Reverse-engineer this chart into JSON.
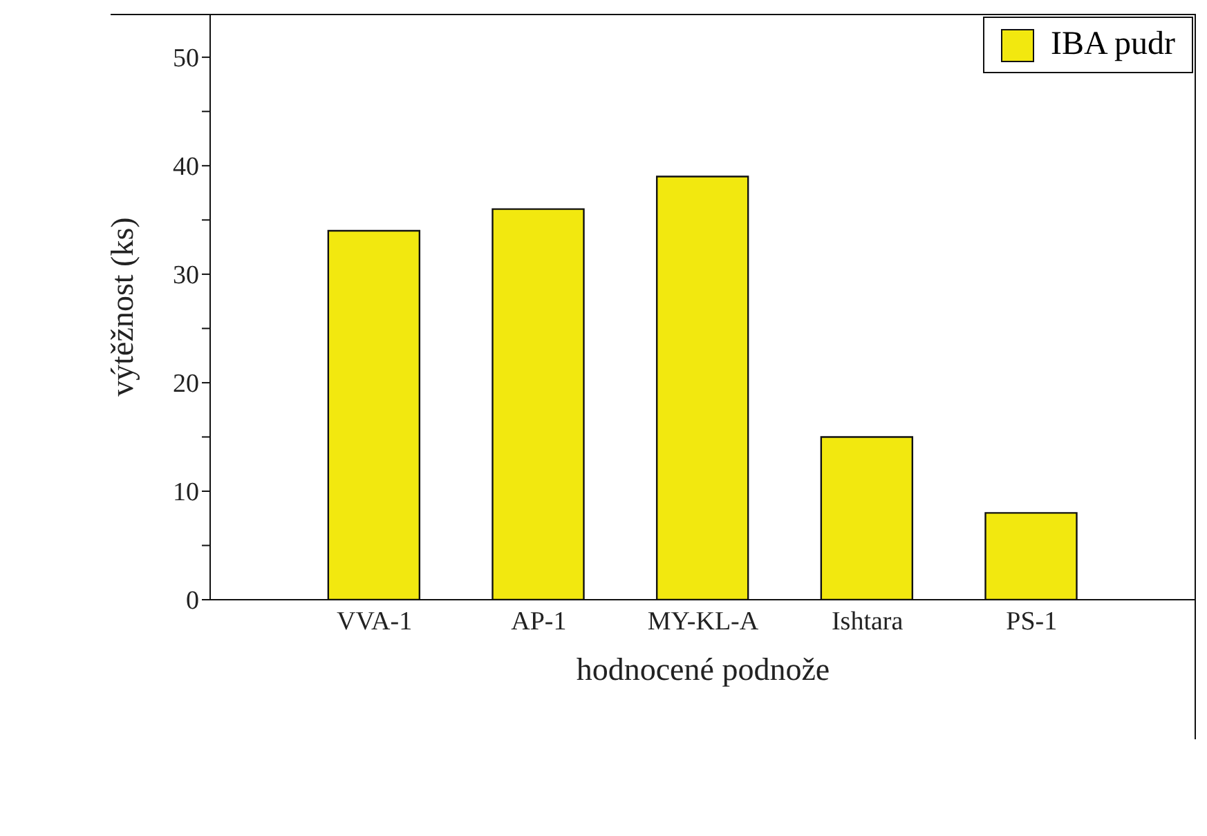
{
  "chart_data": {
    "type": "bar",
    "xlabel": "hodnocené podnože",
    "ylabel": "výtěžnost (ks)",
    "categories": [
      "VVA-1",
      "AP-1",
      "MY-KL-A",
      "Ishtara",
      "PS-1"
    ],
    "series": [
      {
        "name": "IBA pudr",
        "color": "#f2e80f",
        "values": [
          34,
          36,
          39,
          15,
          8
        ]
      }
    ],
    "ylim": [
      0,
      54
    ],
    "yticks": [
      0,
      {
        "value": 5,
        "label": null
      },
      10,
      {
        "value": 15,
        "label": null
      },
      20,
      {
        "value": 25,
        "label": null
      },
      30,
      {
        "value": 35,
        "label": null
      },
      40,
      {
        "value": 45,
        "label": null
      },
      50
    ],
    "grid": false,
    "legend": "top right"
  }
}
